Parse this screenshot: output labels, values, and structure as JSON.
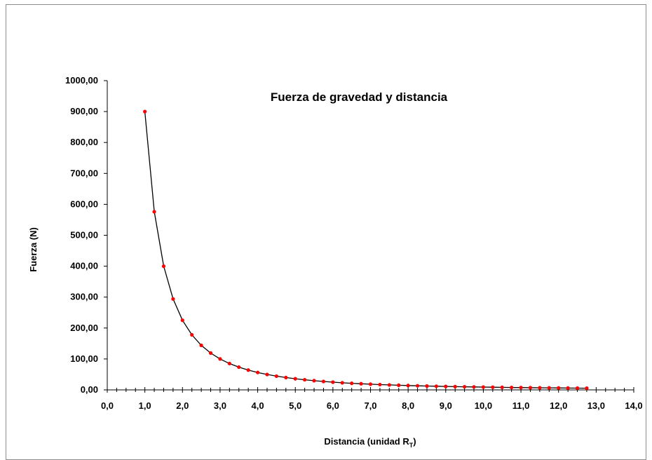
{
  "chart_data": {
    "type": "line",
    "title": "Fuerza de gravedad y distancia",
    "xlabel": "Distancia (unidad R",
    "xlabel_subscript": "T",
    "xlabel_suffix": ")",
    "ylabel": "Fuerza (N)",
    "xlim": [
      0,
      14
    ],
    "ylim": [
      0,
      1000
    ],
    "xticks": [
      "0,0",
      "1,0",
      "2,0",
      "3,0",
      "4,0",
      "5,0",
      "6,0",
      "7,0",
      "8,0",
      "9,0",
      "10,0",
      "11,0",
      "12,0",
      "13,0",
      "14,0"
    ],
    "yticks": [
      "0,00",
      "100,00",
      "200,00",
      "300,00",
      "400,00",
      "500,00",
      "600,00",
      "700,00",
      "800,00",
      "900,00",
      "1000,00"
    ],
    "grid": false,
    "series": [
      {
        "color": "#ff0000",
        "line_color": "#000000",
        "x": [
          1.0,
          1.25,
          1.5,
          1.75,
          2.0,
          2.25,
          2.5,
          2.75,
          3.0,
          3.25,
          3.5,
          3.75,
          4.0,
          4.25,
          4.5,
          4.75,
          5.0,
          5.25,
          5.5,
          5.75,
          6.0,
          6.25,
          6.5,
          6.75,
          7.0,
          7.25,
          7.5,
          7.75,
          8.0,
          8.25,
          8.5,
          8.75,
          9.0,
          9.25,
          9.5,
          9.75,
          10.0,
          10.25,
          10.5,
          10.75,
          11.0,
          11.25,
          11.5,
          11.75,
          12.0,
          12.25,
          12.5,
          12.75
        ],
        "y": [
          900,
          576,
          400,
          294,
          225,
          178,
          144,
          119,
          100,
          85.2,
          73.5,
          64,
          56.3,
          49.8,
          44.4,
          39.9,
          36,
          32.7,
          29.8,
          27.2,
          25,
          23,
          21.3,
          19.8,
          18.4,
          17.1,
          16,
          15,
          14.1,
          13.2,
          12.5,
          11.8,
          11.1,
          10.5,
          10,
          9.47,
          9,
          8.57,
          8.16,
          7.79,
          7.44,
          7.11,
          6.81,
          6.52,
          6.25,
          6,
          5.76,
          5.54
        ]
      }
    ]
  }
}
